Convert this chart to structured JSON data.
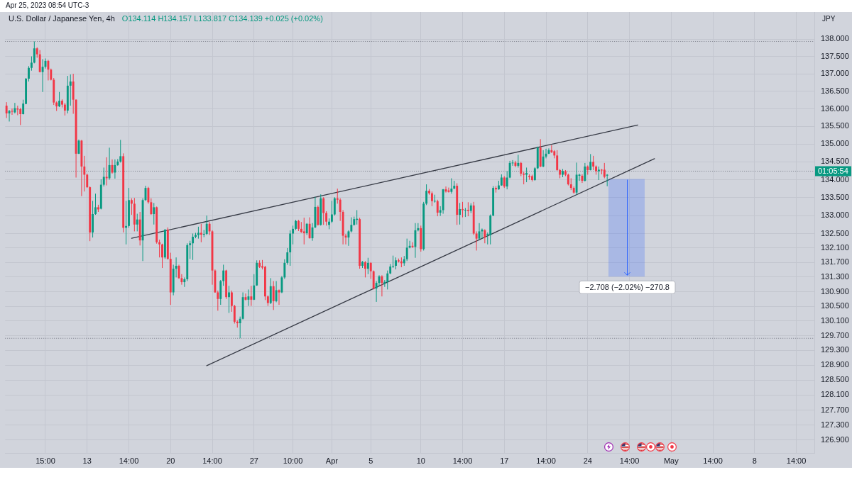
{
  "chart_data": {
    "type": "candlestick",
    "title": "U.S. Dollar / Japanese Yen, 4h",
    "subtitle": "O134.114 H134.157 L133.817 C134.139 +0.025 (+0.02%)",
    "ylabel": "JPY",
    "annotations": [
      "Apr 25, 2023 08:54 UTC-3",
      "01:05:54"
    ],
    "categories": [
      null,
      null,
      null,
      null,
      null,
      null,
      null,
      null,
      null,
      null,
      null,
      null,
      null,
      null,
      "15:00",
      null,
      null,
      null,
      null,
      null,
      null,
      null,
      null,
      null,
      null,
      null,
      null,
      null,
      null,
      "13",
      null,
      null,
      null,
      null,
      null,
      null,
      null,
      null,
      null,
      null,
      null,
      null,
      null,
      null,
      "14:00",
      null,
      null,
      null,
      null,
      null,
      null,
      null,
      null,
      null,
      null,
      null,
      null,
      null,
      null,
      "20",
      null,
      null,
      null,
      null,
      null,
      null,
      null,
      null,
      null,
      null,
      null,
      null,
      null,
      null,
      "14:00",
      null,
      null,
      null,
      null,
      null,
      null,
      null,
      null,
      null,
      null,
      null,
      null,
      null,
      null,
      "27",
      null,
      null,
      null,
      null,
      null,
      null,
      null,
      null,
      null,
      null,
      null,
      null,
      null,
      "10:00",
      null,
      null,
      null,
      null,
      null,
      null,
      null,
      null,
      null,
      null,
      null,
      null,
      null,
      "Apr",
      null,
      null,
      null,
      null,
      null,
      null,
      null,
      null,
      null,
      null,
      null,
      null,
      null,
      "5",
      null,
      null,
      null,
      null,
      null,
      null,
      null,
      null,
      null,
      null,
      null,
      null,
      null,
      null,
      null,
      null,
      null,
      "10",
      null,
      null,
      null,
      null,
      null,
      null,
      null,
      null,
      null,
      null,
      null,
      null,
      null,
      null,
      "14:00",
      null,
      null,
      null,
      null,
      null,
      null,
      null,
      null,
      null,
      null,
      null,
      null,
      null,
      null,
      "17",
      null,
      null,
      null,
      null,
      null,
      null,
      null,
      null,
      null,
      null,
      null,
      null,
      null,
      null,
      "14:00",
      null,
      null,
      null,
      null,
      null,
      null,
      null,
      null,
      null,
      null,
      null,
      null,
      null,
      null,
      "24",
      null,
      null,
      null,
      null,
      null,
      null,
      null,
      null,
      null,
      null,
      null,
      null,
      null,
      null,
      "14:00",
      null,
      null,
      null,
      null,
      null,
      null,
      null,
      null,
      null,
      null,
      null,
      null,
      null,
      null,
      "May",
      null,
      null,
      null,
      null,
      null,
      null,
      null,
      null,
      null,
      null,
      null,
      null,
      null,
      null,
      "14:00",
      null,
      null,
      null,
      null,
      null,
      null,
      null,
      null,
      null,
      null,
      null,
      null,
      null,
      null,
      "8",
      null,
      null,
      null,
      null,
      null,
      null,
      null,
      null,
      null,
      null,
      null,
      null,
      null,
      null,
      "14:00",
      null,
      null,
      null,
      null,
      null,
      null
    ],
    "ohlc": [
      [
        136.09,
        136.19,
        135.74,
        135.87
      ],
      [
        135.87,
        135.97,
        135.64,
        135.94
      ],
      [
        135.94,
        136.01,
        135.83,
        135.92
      ],
      [
        135.9,
        136.17,
        135.87,
        136.02
      ],
      [
        136.01,
        136.09,
        135.82,
        135.98
      ],
      [
        135.99,
        136.03,
        135.54,
        135.85
      ],
      [
        135.85,
        136.26,
        135.84,
        136.15
      ],
      [
        136.14,
        136.88,
        136.13,
        136.86
      ],
      [
        136.86,
        137.22,
        136.78,
        137.17
      ],
      [
        137.17,
        137.5,
        137.09,
        137.32
      ],
      [
        137.32,
        137.93,
        137.3,
        137.73
      ],
      [
        137.73,
        137.76,
        137.46,
        137.56
      ],
      [
        137.56,
        137.68,
        137.04,
        137.05
      ],
      [
        137.05,
        137.42,
        136.48,
        137.2
      ],
      [
        137.2,
        137.44,
        137.15,
        137.37
      ],
      [
        137.37,
        137.4,
        136.81,
        137.12
      ],
      [
        137.12,
        137.15,
        136.81,
        136.83
      ],
      [
        136.83,
        136.88,
        136.11,
        136.18
      ],
      [
        136.18,
        136.21,
        135.94,
        136.07
      ],
      [
        136.07,
        136.48,
        136.05,
        136.23
      ],
      [
        136.23,
        136.27,
        136.04,
        136.12
      ],
      [
        136.12,
        136.17,
        135.81,
        135.95
      ],
      [
        135.95,
        136.94,
        135.87,
        136.66
      ],
      [
        136.66,
        136.98,
        136.09,
        136.78
      ],
      [
        136.78,
        137.0,
        135.86,
        136.26
      ],
      [
        136.26,
        136.27,
        134.06,
        134.73
      ],
      [
        134.73,
        135.13,
        134.72,
        135.1
      ],
      [
        135.1,
        135.12,
        133.54,
        134.37
      ],
      [
        134.37,
        134.67,
        133.67,
        134.14
      ],
      [
        134.14,
        134.17,
        133.77,
        133.79
      ],
      [
        133.79,
        133.81,
        132.29,
        132.53
      ],
      [
        132.53,
        133.41,
        132.39,
        133.04
      ],
      [
        133.04,
        133.61,
        133.02,
        133.23
      ],
      [
        133.23,
        133.3,
        133.1,
        133.17
      ],
      [
        133.19,
        134.01,
        133.17,
        133.86
      ],
      [
        133.86,
        134.34,
        133.81,
        134.08
      ],
      [
        134.08,
        134.63,
        133.84,
        134.04
      ],
      [
        134.04,
        134.9,
        134.0,
        134.41
      ],
      [
        134.41,
        134.57,
        134.17,
        134.2
      ],
      [
        134.2,
        134.57,
        134.03,
        134.41
      ],
      [
        134.41,
        134.58,
        134.39,
        134.51
      ],
      [
        134.51,
        135.12,
        134.48,
        134.66
      ],
      [
        134.66,
        134.74,
        132.53,
        132.66
      ],
      [
        132.66,
        133.41,
        132.2,
        132.71
      ],
      [
        132.71,
        133.77,
        132.66,
        133.43
      ],
      [
        133.43,
        133.48,
        133.02,
        133.33
      ],
      [
        133.33,
        133.49,
        132.56,
        132.75
      ],
      [
        132.75,
        133.05,
        132.56,
        132.89
      ],
      [
        132.89,
        133.1,
        132.17,
        132.31
      ],
      [
        132.31,
        133.48,
        131.74,
        133.43
      ],
      [
        133.43,
        133.83,
        133.41,
        133.77
      ],
      [
        133.77,
        133.8,
        133.33,
        133.37
      ],
      [
        133.37,
        133.48,
        133.02,
        133.04
      ],
      [
        133.04,
        133.35,
        132.75,
        133.23
      ],
      [
        133.23,
        133.25,
        132.22,
        132.26
      ],
      [
        132.26,
        132.33,
        131.84,
        132.2
      ],
      [
        132.2,
        132.22,
        131.55,
        131.84
      ],
      [
        131.84,
        132.62,
        131.8,
        132.61
      ],
      [
        132.61,
        132.67,
        131.78,
        131.8
      ],
      [
        131.8,
        131.97,
        130.54,
        130.88
      ],
      [
        130.88,
        131.64,
        130.8,
        131.53
      ],
      [
        131.53,
        131.84,
        131.29,
        131.61
      ],
      [
        131.61,
        131.64,
        131.25,
        131.27
      ],
      [
        131.27,
        131.38,
        131.09,
        131.16
      ],
      [
        131.16,
        131.29,
        131.03,
        131.24
      ],
      [
        131.24,
        132.23,
        131.19,
        132.18
      ],
      [
        132.18,
        132.3,
        131.8,
        132.23
      ],
      [
        132.23,
        132.5,
        131.77,
        132.41
      ],
      [
        132.41,
        132.52,
        132.37,
        132.46
      ],
      [
        132.46,
        132.69,
        132.36,
        132.52
      ],
      [
        132.52,
        132.77,
        132.26,
        132.47
      ],
      [
        132.47,
        132.6,
        132.4,
        132.49
      ],
      [
        132.49,
        133.0,
        132.46,
        132.77
      ],
      [
        132.77,
        132.82,
        132.46,
        132.56
      ],
      [
        132.56,
        132.59,
        131.09,
        131.48
      ],
      [
        131.48,
        131.51,
        130.87,
        130.88
      ],
      [
        130.88,
        130.93,
        130.38,
        130.7
      ],
      [
        130.7,
        131.22,
        130.54,
        131.19
      ],
      [
        131.19,
        131.64,
        131.06,
        131.48
      ],
      [
        131.48,
        131.5,
        130.7,
        130.75
      ],
      [
        130.75,
        131.06,
        130.32,
        130.88
      ],
      [
        130.88,
        130.93,
        130.35,
        130.51
      ],
      [
        130.51,
        130.54,
        130.03,
        130.08
      ],
      [
        130.08,
        130.12,
        129.92,
        130.04
      ],
      [
        130.04,
        130.22,
        129.63,
        130.16
      ],
      [
        130.16,
        130.88,
        130.14,
        130.75
      ],
      [
        130.75,
        130.85,
        130.66,
        130.68
      ],
      [
        130.68,
        130.96,
        130.51,
        130.77
      ],
      [
        130.77,
        131.06,
        130.51,
        130.68
      ],
      [
        130.68,
        131.38,
        130.67,
        131.07
      ],
      [
        131.07,
        131.76,
        131.06,
        131.69
      ],
      [
        131.69,
        131.76,
        131.55,
        131.58
      ],
      [
        131.6,
        131.77,
        131.51,
        131.56
      ],
      [
        131.58,
        131.61,
        130.67,
        130.77
      ],
      [
        130.77,
        130.8,
        130.51,
        130.59
      ],
      [
        130.59,
        131.27,
        130.56,
        131.05
      ],
      [
        131.05,
        131.19,
        130.4,
        130.64
      ],
      [
        130.64,
        131.19,
        130.61,
        130.94
      ],
      [
        130.94,
        130.96,
        130.54,
        130.88
      ],
      [
        130.88,
        131.33,
        130.86,
        131.29
      ],
      [
        131.29,
        131.79,
        131.25,
        131.69
      ],
      [
        131.69,
        132.1,
        131.64,
        131.98
      ],
      [
        131.98,
        132.59,
        131.61,
        132.5
      ],
      [
        132.5,
        132.72,
        132.2,
        132.63
      ],
      [
        132.63,
        132.88,
        132.6,
        132.85
      ],
      [
        132.85,
        132.88,
        132.57,
        132.63
      ],
      [
        132.63,
        132.82,
        132.52,
        132.54
      ],
      [
        132.56,
        132.94,
        132.2,
        132.51
      ],
      [
        132.51,
        132.79,
        132.46,
        132.77
      ],
      [
        132.77,
        132.95,
        132.36,
        132.37
      ],
      [
        132.37,
        132.79,
        132.3,
        132.67
      ],
      [
        132.67,
        133.52,
        132.65,
        133.24
      ],
      [
        133.24,
        133.28,
        132.72,
        132.74
      ],
      [
        132.74,
        133.59,
        132.72,
        133.48
      ],
      [
        133.48,
        133.51,
        132.74,
        133.07
      ],
      [
        133.07,
        133.12,
        132.72,
        132.83
      ],
      [
        132.74,
        132.92,
        132.62,
        132.83
      ],
      [
        132.83,
        133.41,
        132.79,
        133.03
      ],
      [
        133.03,
        133.51,
        133.0,
        133.48
      ],
      [
        133.48,
        133.75,
        133.33,
        133.44
      ],
      [
        133.44,
        133.48,
        132.85,
        133.1
      ],
      [
        133.1,
        133.15,
        132.2,
        132.44
      ],
      [
        132.44,
        132.49,
        132.2,
        132.39
      ],
      [
        132.39,
        132.59,
        132.16,
        132.56
      ],
      [
        132.56,
        132.95,
        132.53,
        132.74
      ],
      [
        132.74,
        132.97,
        132.72,
        132.9
      ],
      [
        132.88,
        133.15,
        132.75,
        132.91
      ],
      [
        132.9,
        132.94,
        131.53,
        131.61
      ],
      [
        131.61,
        131.74,
        131.55,
        131.72
      ],
      [
        131.71,
        131.74,
        131.29,
        131.53
      ],
      [
        131.53,
        131.83,
        131.38,
        131.69
      ],
      [
        131.69,
        131.71,
        131.25,
        131.46
      ],
      [
        131.46,
        131.48,
        130.96,
        130.99
      ],
      [
        130.99,
        131.19,
        130.62,
        131.14
      ],
      [
        131.14,
        131.35,
        131.06,
        131.32
      ],
      [
        131.32,
        131.35,
        130.77,
        131.14
      ],
      [
        131.12,
        131.22,
        131.03,
        131.17
      ],
      [
        131.16,
        131.48,
        130.96,
        131.4
      ],
      [
        131.4,
        131.66,
        131.38,
        131.59
      ],
      [
        131.59,
        131.89,
        131.55,
        131.61
      ],
      [
        131.61,
        131.84,
        131.51,
        131.76
      ],
      [
        131.76,
        131.81,
        131.7,
        131.73
      ],
      [
        131.73,
        131.84,
        131.57,
        131.68
      ],
      [
        131.68,
        131.88,
        131.61,
        131.79
      ],
      [
        131.79,
        132.36,
        131.74,
        132.11
      ],
      [
        132.11,
        132.3,
        132.09,
        132.16
      ],
      [
        132.16,
        132.26,
        132.1,
        132.13
      ],
      [
        132.13,
        132.79,
        131.83,
        132.59
      ],
      [
        132.59,
        132.79,
        132.56,
        132.65
      ],
      [
        132.65,
        132.72,
        132.0,
        132.07
      ],
      [
        132.07,
        133.38,
        132.03,
        133.33
      ],
      [
        133.33,
        133.87,
        133.29,
        133.69
      ],
      [
        133.69,
        133.74,
        133.58,
        133.62
      ],
      [
        133.62,
        133.67,
        133.26,
        133.4
      ],
      [
        133.39,
        133.58,
        133.36,
        133.41
      ],
      [
        133.4,
        133.44,
        132.98,
        133.08
      ],
      [
        133.08,
        133.26,
        132.99,
        133.15
      ],
      [
        133.15,
        133.74,
        133.05,
        133.73
      ],
      [
        133.73,
        133.81,
        133.64,
        133.67
      ],
      [
        133.7,
        133.78,
        133.64,
        133.66
      ],
      [
        133.66,
        134.04,
        133.61,
        133.75
      ],
      [
        133.75,
        133.97,
        133.74,
        133.83
      ],
      [
        133.83,
        133.9,
        132.74,
        133.02
      ],
      [
        133.02,
        133.35,
        132.75,
        133.18
      ],
      [
        133.18,
        133.38,
        132.95,
        133.15
      ],
      [
        133.15,
        133.21,
        132.96,
        133.16
      ],
      [
        133.16,
        133.37,
        132.98,
        133.13
      ],
      [
        133.13,
        133.34,
        133.07,
        133.28
      ],
      [
        133.28,
        133.38,
        132.46,
        132.5
      ],
      [
        132.5,
        132.56,
        132.03,
        132.36
      ],
      [
        132.36,
        132.79,
        132.33,
        132.56
      ],
      [
        132.56,
        132.64,
        132.36,
        132.61
      ],
      [
        132.59,
        132.62,
        132.23,
        132.39
      ],
      [
        132.46,
        132.53,
        132.2,
        132.49
      ],
      [
        132.46,
        133.03,
        132.2,
        133.0
      ],
      [
        133.0,
        133.82,
        132.98,
        133.77
      ],
      [
        133.77,
        133.82,
        133.64,
        133.73
      ],
      [
        133.73,
        133.97,
        133.72,
        133.84
      ],
      [
        133.84,
        134.15,
        133.83,
        134.06
      ],
      [
        134.06,
        134.1,
        133.77,
        133.81
      ],
      [
        133.81,
        134.24,
        133.73,
        134.06
      ],
      [
        134.06,
        134.53,
        134.04,
        134.47
      ],
      [
        134.47,
        134.55,
        134.39,
        134.48
      ],
      [
        134.48,
        134.53,
        134.35,
        134.39
      ],
      [
        134.39,
        134.7,
        134.34,
        134.47
      ],
      [
        134.47,
        134.5,
        134.1,
        134.17
      ],
      [
        134.17,
        134.22,
        133.87,
        134.14
      ],
      [
        134.14,
        134.34,
        133.93,
        134.19
      ],
      [
        134.1,
        134.15,
        134.0,
        134.07
      ],
      [
        134.1,
        134.14,
        133.95,
        133.99
      ],
      [
        133.99,
        134.35,
        133.97,
        134.32
      ],
      [
        134.32,
        134.93,
        134.3,
        134.9
      ],
      [
        134.9,
        135.14,
        134.35,
        134.37
      ],
      [
        134.37,
        134.83,
        134.35,
        134.65
      ],
      [
        134.65,
        134.87,
        134.6,
        134.73
      ],
      [
        134.73,
        134.88,
        134.72,
        134.83
      ],
      [
        134.83,
        134.97,
        134.75,
        134.77
      ],
      [
        134.8,
        134.83,
        134.6,
        134.68
      ],
      [
        134.68,
        134.83,
        134.25,
        134.27
      ],
      [
        134.27,
        134.3,
        134.04,
        134.14
      ],
      [
        134.14,
        134.3,
        134.07,
        134.24
      ],
      [
        134.24,
        134.27,
        134.1,
        134.14
      ],
      [
        134.14,
        134.17,
        133.84,
        133.87
      ],
      [
        133.87,
        134.04,
        133.71,
        133.77
      ],
      [
        133.77,
        133.81,
        133.61,
        133.64
      ],
      [
        133.64,
        134.48,
        133.58,
        134.14
      ],
      [
        134.11,
        134.17,
        133.97,
        134.14
      ],
      [
        134.11,
        134.15,
        133.91,
        133.97
      ],
      [
        133.97,
        134.47,
        133.95,
        134.37
      ],
      [
        134.37,
        134.4,
        134.14,
        134.27
      ],
      [
        134.27,
        134.72,
        134.26,
        134.5
      ],
      [
        134.5,
        134.67,
        134.27,
        134.37
      ],
      [
        134.37,
        134.4,
        134.14,
        134.24
      ],
      [
        134.24,
        134.37,
        133.99,
        134.28
      ],
      [
        134.28,
        134.3,
        134.15,
        134.26
      ],
      [
        134.28,
        134.47,
        134.04,
        134.08
      ],
      [
        134.114,
        134.157,
        133.817,
        134.139
      ],
      null,
      null,
      null,
      null,
      null,
      null,
      null,
      null,
      null,
      null,
      null,
      null,
      null,
      null,
      null,
      null,
      null,
      null,
      null,
      null,
      null,
      null,
      null,
      null,
      null,
      null,
      null,
      null,
      null,
      null,
      null,
      null,
      null,
      null,
      null,
      null,
      null,
      null,
      null,
      null,
      null,
      null,
      null,
      null,
      null,
      null,
      null,
      null,
      null,
      null,
      null,
      null,
      null,
      null,
      null,
      null,
      null,
      null,
      null,
      null,
      null,
      null,
      null,
      null,
      null,
      null,
      null,
      null,
      null,
      null,
      null,
      null,
      null,
      null
    ],
    "colors": [
      "#f23645",
      "#089981",
      "#f23645",
      "#089981",
      "#f23645",
      "#f23645",
      "#089981",
      "#089981",
      "#089981",
      "#089981",
      "#089981",
      "#f23645",
      "#f23645",
      "#089981",
      "#089981",
      "#f23645",
      "#f23645",
      "#f23645",
      "#f23645",
      "#089981",
      "#f23645",
      "#f23645",
      "#089981",
      "#089981",
      "#f23645",
      "#f23645",
      "#089981",
      "#f23645",
      "#f23645",
      "#f23645",
      "#f23645",
      "#089981",
      "#089981",
      "#f23645",
      "#089981",
      "#089981",
      "#f23645",
      "#089981",
      "#f23645",
      "#089981",
      "#089981",
      "#089981",
      "#f23645",
      "#089981",
      "#089981",
      "#f23645",
      "#f23645",
      "#089981",
      "#f23645",
      "#089981",
      "#089981",
      "#f23645",
      "#f23645",
      "#089981",
      "#f23645",
      "#f23645",
      "#f23645",
      "#089981",
      "#f23645",
      "#f23645",
      "#089981",
      "#089981",
      "#f23645",
      "#f23645",
      "#089981",
      "#089981",
      "#089981",
      "#089981",
      "#089981",
      "#089981",
      "#f23645",
      "#089981",
      "#089981",
      "#f23645",
      "#f23645",
      "#f23645",
      "#f23645",
      "#089981",
      "#089981",
      "#f23645",
      "#089981",
      "#f23645",
      "#f23645",
      "#f23645",
      "#089981",
      "#089981",
      "#f23645",
      "#089981",
      "#f23645",
      "#089981",
      "#089981",
      "#f23645",
      "#f23645",
      "#f23645",
      "#f23645",
      "#089981",
      "#f23645",
      "#089981",
      "#f23645",
      "#089981",
      "#089981",
      "#089981",
      "#089981",
      "#089981",
      "#089981",
      "#f23645",
      "#f23645",
      "#f23645",
      "#089981",
      "#f23645",
      "#089981",
      "#089981",
      "#f23645",
      "#089981",
      "#f23645",
      "#f23645",
      "#089981",
      "#089981",
      "#089981",
      "#f23645",
      "#f23645",
      "#f23645",
      "#f23645",
      "#089981",
      "#089981",
      "#089981",
      "#089981",
      "#f23645",
      "#089981",
      "#f23645",
      "#089981",
      "#f23645",
      "#f23645",
      "#089981",
      "#089981",
      "#f23645",
      "#089981",
      "#089981",
      "#089981",
      "#089981",
      "#089981",
      "#f23645",
      "#f23645",
      "#089981",
      "#089981",
      "#089981",
      "#f23645",
      "#089981",
      "#089981",
      "#f23645",
      "#089981",
      "#089981",
      "#f23645",
      "#f23645",
      "#089981",
      "#f23645",
      "#089981",
      "#089981",
      "#f23645",
      "#f23645",
      "#089981",
      "#089981",
      "#f23645",
      "#089981",
      "#f23645",
      "#089981",
      "#f23645",
      "#089981",
      "#f23645",
      "#f23645",
      "#089981",
      "#089981",
      "#f23645",
      "#089981",
      "#089981",
      "#089981",
      "#f23645",
      "#089981",
      "#089981",
      "#f23645",
      "#089981",
      "#089981",
      "#089981",
      "#f23645",
      "#089981",
      "#f23645",
      "#f23645",
      "#089981",
      "#f23645",
      "#f23645",
      "#089981",
      "#089981",
      "#f23645",
      "#089981",
      "#089981",
      "#089981",
      "#f23645",
      "#f23645",
      "#f23645",
      "#f23645",
      "#089981",
      "#f23645",
      "#f23645",
      "#f23645",
      "#f23645",
      "#089981",
      "#089981",
      "#f23645",
      "#089981",
      "#f23645",
      "#089981",
      "#f23645",
      "#f23645",
      "#089981",
      "#f23645",
      "#f23645",
      "#089981",
      null,
      null,
      null,
      null,
      null,
      null,
      null,
      null,
      null,
      null,
      null,
      null,
      null,
      null,
      null,
      null,
      null,
      null,
      null,
      null,
      null,
      null,
      null,
      null,
      null,
      null,
      null,
      null,
      null,
      null,
      null,
      null,
      null,
      null,
      null,
      null,
      null,
      null,
      null,
      null,
      null,
      null,
      null,
      null,
      null,
      null,
      null,
      null,
      null,
      null,
      null,
      null,
      null,
      null,
      null,
      null,
      null,
      null,
      null,
      null,
      null,
      null,
      null,
      null,
      null,
      null,
      null,
      null,
      null,
      null,
      null,
      null,
      null,
      null
    ],
    "series": [
      {
        "type": "line",
        "color": "#363a45",
        "values": [
          null,
          null,
          null,
          null,
          null,
          null,
          null,
          null,
          null,
          null,
          null,
          null,
          null,
          null,
          null,
          null,
          null,
          null,
          null,
          null,
          null,
          null,
          null,
          null,
          null,
          null,
          null,
          null,
          null,
          null,
          null,
          null,
          null,
          null,
          null,
          null,
          null,
          null,
          null,
          null,
          null,
          null,
          null,
          null,
          null,
          132.37,
          null,
          null,
          null,
          null,
          null,
          null,
          null,
          null,
          null,
          null,
          null,
          null,
          null,
          null,
          null,
          null,
          null,
          null,
          null,
          null,
          null,
          null,
          null,
          null,
          null,
          null,
          null,
          null,
          null,
          null,
          null,
          null,
          null,
          null,
          null,
          null,
          null,
          null,
          null,
          null,
          null,
          null,
          null,
          null,
          null,
          null,
          null,
          null,
          null,
          null,
          null,
          null,
          null,
          null,
          null,
          null,
          null,
          null,
          null,
          null,
          null,
          null,
          null,
          null,
          null,
          null,
          null,
          null,
          null,
          null,
          null,
          null,
          null,
          null,
          null,
          null,
          null,
          null,
          null,
          null,
          null,
          null,
          null,
          null,
          null,
          null,
          null,
          null,
          null,
          null,
          null,
          null,
          null,
          null,
          null,
          null,
          null,
          null,
          null,
          null,
          null,
          null,
          null,
          null,
          null,
          null,
          null,
          null,
          null,
          null,
          null,
          null,
          null,
          null,
          null,
          null,
          null,
          null,
          null,
          null,
          null,
          null,
          null,
          null,
          null,
          null,
          null,
          null,
          null,
          null,
          null,
          null,
          null,
          null,
          null,
          null,
          null,
          null,
          null,
          null,
          null,
          null,
          null,
          null,
          null,
          null,
          null,
          null,
          null,
          null,
          null,
          null,
          null,
          null,
          null,
          null,
          null,
          null,
          null,
          null,
          null,
          null,
          null,
          null,
          null,
          null,
          null,
          null,
          null,
          null,
          null,
          null,
          null,
          null,
          null,
          null,
          null,
          null,
          null,
          null,
          null,
          135.54,
          null,
          null,
          null,
          null,
          null,
          null,
          null,
          null,
          null,
          null,
          null,
          null,
          null,
          null,
          null,
          null,
          null,
          null,
          null,
          null,
          null,
          null,
          null,
          null,
          null,
          null,
          null,
          null,
          null,
          null,
          null,
          null,
          null,
          null,
          null,
          null,
          null,
          null,
          null,
          null,
          null,
          null,
          null,
          null,
          null,
          null,
          null,
          null,
          null,
          null,
          null,
          null,
          null,
          null,
          null,
          null,
          null,
          null,
          null,
          null,
          null,
          null,
          null
        ]
      },
      {
        "type": "line",
        "color": "#363a45",
        "values": [
          null,
          null,
          null,
          null,
          null,
          null,
          null,
          null,
          null,
          null,
          null,
          null,
          null,
          null,
          null,
          null,
          null,
          null,
          null,
          null,
          null,
          null,
          null,
          null,
          null,
          null,
          null,
          null,
          null,
          null,
          null,
          null,
          null,
          null,
          null,
          null,
          null,
          null,
          null,
          null,
          null,
          null,
          null,
          null,
          null,
          null,
          null,
          null,
          null,
          null,
          null,
          null,
          null,
          null,
          null,
          null,
          null,
          null,
          null,
          null,
          null,
          null,
          null,
          null,
          null,
          null,
          null,
          null,
          null,
          null,
          null,
          null,
          128.89,
          null,
          null,
          null,
          null,
          null,
          null,
          null,
          null,
          null,
          null,
          null,
          null,
          null,
          null,
          null,
          null,
          null,
          null,
          null,
          null,
          null,
          null,
          null,
          null,
          null,
          null,
          null,
          null,
          null,
          null,
          null,
          null,
          null,
          null,
          null,
          null,
          null,
          null,
          null,
          null,
          null,
          null,
          null,
          null,
          null,
          null,
          null,
          null,
          null,
          null,
          null,
          null,
          null,
          null,
          null,
          null,
          null,
          null,
          null,
          null,
          null,
          null,
          null,
          null,
          null,
          null,
          null,
          null,
          null,
          null,
          null,
          null,
          null,
          null,
          null,
          null,
          null,
          null,
          null,
          null,
          null,
          null,
          null,
          null,
          null,
          null,
          null,
          null,
          null,
          null,
          null,
          null,
          null,
          null,
          null,
          null,
          null,
          null,
          null,
          null,
          null,
          null,
          null,
          null,
          null,
          null,
          null,
          null,
          null,
          null,
          null,
          null,
          null,
          null,
          null,
          null,
          null,
          null,
          null,
          null,
          null,
          null,
          null,
          null,
          null,
          null,
          null,
          null,
          null,
          null,
          null,
          null,
          null,
          null,
          null,
          null,
          null,
          null,
          null,
          null,
          null,
          null,
          null,
          null,
          null,
          null,
          null,
          null,
          null,
          null,
          null,
          null,
          null,
          null,
          null,
          null,
          null,
          null,
          null,
          null,
          134.59,
          null,
          null,
          null,
          null,
          null,
          null,
          null,
          null,
          null,
          null,
          null,
          null,
          null,
          null,
          null,
          null,
          null,
          null,
          null,
          null,
          null,
          null,
          null,
          null,
          null,
          null,
          null,
          null,
          null,
          null,
          null,
          null,
          null,
          null,
          null,
          null,
          null,
          null,
          null,
          null,
          null,
          null,
          null,
          null,
          null,
          null,
          null,
          null,
          null,
          null,
          null,
          null,
          null,
          null,
          null,
          null,
          null
        ]
      }
    ],
    "ylim": [
      126.56,
      138.78
    ],
    "yticks": [
      {
        "value": 138,
        "label": "138.000"
      },
      {
        "value": 137.5,
        "label": "137.500"
      },
      {
        "value": 137,
        "label": "137.000"
      },
      {
        "value": 136.5,
        "label": "136.500"
      },
      {
        "value": 136,
        "label": "136.000"
      },
      {
        "value": 135.5,
        "label": "135.500"
      },
      {
        "value": 135,
        "label": "135.000"
      },
      {
        "value": 134.5,
        "label": "134.500"
      },
      {
        "value": 134,
        "label": "134.000"
      },
      {
        "value": 133.5,
        "label": "133.500"
      },
      {
        "value": 133,
        "label": "133.000"
      },
      {
        "value": 132.5,
        "label": "132.500"
      },
      {
        "value": 132.1,
        "label": "132.100"
      },
      {
        "value": 131.7,
        "label": "131.700"
      },
      {
        "value": 131.3,
        "label": "131.300"
      },
      {
        "value": 130.9,
        "label": "130.900"
      },
      {
        "value": 130.5,
        "label": "130.500"
      },
      {
        "value": 130.1,
        "label": "130.100"
      },
      {
        "value": 129.7,
        "label": "129.700"
      },
      {
        "value": 129.3,
        "label": "129.300"
      },
      {
        "value": 128.9,
        "label": "128.900"
      },
      {
        "value": 128.5,
        "label": "128.500"
      },
      {
        "value": 128.1,
        "label": "128.100"
      },
      {
        "value": 127.7,
        "label": "127.700"
      },
      {
        "value": 127.3,
        "label": "127.300"
      },
      {
        "value": 126.9,
        "label": "126.900"
      }
    ],
    "log": true,
    "grid": true,
    "ref_lines": [
      {
        "axis": "y",
        "value": 137.93,
        "color": "#787b86",
        "line_style": "dotted"
      },
      {
        "axis": "y",
        "value": 129.63,
        "color": "#787b86",
        "line_style": "dotted"
      },
      {
        "axis": "y",
        "value": 134.24,
        "color": "#787b86",
        "line_style": "dotted"
      }
    ],
    "bands": [
      {
        "axis": "y",
        "from": 134.02,
        "to": 131.312,
        "label": "−2.708 (−2.02%) −270.8",
        "color": "#2962ff"
      }
    ]
  }
}
